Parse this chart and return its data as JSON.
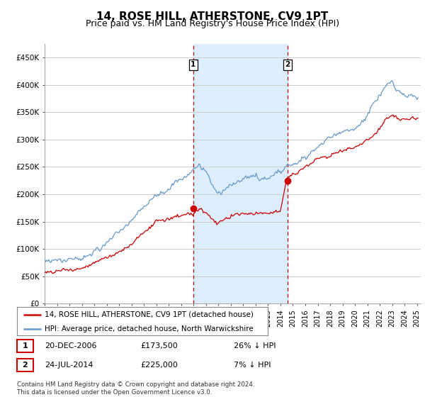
{
  "title": "14, ROSE HILL, ATHERSTONE, CV9 1PT",
  "subtitle": "Price paid vs. HM Land Registry's House Price Index (HPI)",
  "ylabel_ticks": [
    "£0",
    "£50K",
    "£100K",
    "£150K",
    "£200K",
    "£250K",
    "£300K",
    "£350K",
    "£400K",
    "£450K"
  ],
  "ytick_values": [
    0,
    50000,
    100000,
    150000,
    200000,
    250000,
    300000,
    350000,
    400000,
    450000
  ],
  "ylim": [
    0,
    475000
  ],
  "xlim_start": 1995.0,
  "xlim_end": 2025.3,
  "transaction1": {
    "date_num": 2006.97,
    "price": 173500,
    "label": "1"
  },
  "transaction2": {
    "date_num": 2014.56,
    "price": 225000,
    "label": "2"
  },
  "legend_red_label": "14, ROSE HILL, ATHERSTONE, CV9 1PT (detached house)",
  "legend_blue_label": "HPI: Average price, detached house, North Warwickshire",
  "table_row1": [
    "1",
    "20-DEC-2006",
    "£173,500",
    "26% ↓ HPI"
  ],
  "table_row2": [
    "2",
    "24-JUL-2014",
    "£225,000",
    "7% ↓ HPI"
  ],
  "footnote": "Contains HM Land Registry data © Crown copyright and database right 2024.\nThis data is licensed under the Open Government Licence v3.0.",
  "background_color": "#ffffff",
  "plot_bg_color": "#ffffff",
  "grid_color": "#cccccc",
  "shade_color": "#ddeeff",
  "red_line_color": "#cc0000",
  "blue_line_color": "#6699cc",
  "title_fontsize": 11,
  "subtitle_fontsize": 9
}
